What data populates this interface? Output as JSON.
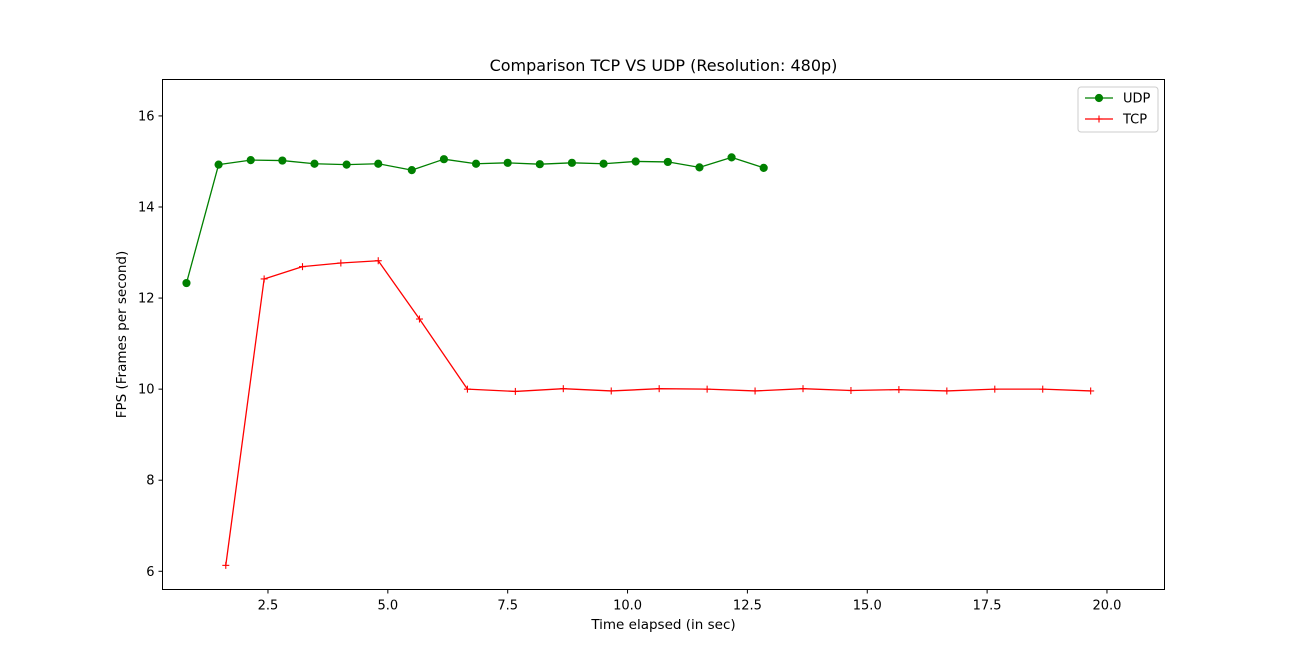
{
  "chart_data": {
    "type": "line",
    "title": "Comparison TCP VS UDP (Resolution: 480p)",
    "xlabel": "Time elapsed (in sec)",
    "ylabel": "FPS (Frames per second)",
    "xlim": [
      0.3,
      21.2
    ],
    "ylim": [
      5.6,
      16.8
    ],
    "xticks": [
      2.5,
      5.0,
      7.5,
      10.0,
      12.5,
      15.0,
      17.5,
      20.0
    ],
    "xtick_labels": [
      "2.5",
      "5.0",
      "7.5",
      "10.0",
      "12.5",
      "15.0",
      "17.5",
      "20.0"
    ],
    "yticks": [
      6,
      8,
      10,
      12,
      14,
      16
    ],
    "ytick_labels": [
      "6",
      "8",
      "10",
      "12",
      "14",
      "16"
    ],
    "grid": false,
    "legend_position": "top-right",
    "series": [
      {
        "name": "UDP",
        "color": "#008000",
        "marker": "circle",
        "x": [
          0.8,
          1.47,
          2.14,
          2.8,
          3.47,
          4.14,
          4.8,
          5.5,
          6.17,
          6.84,
          7.5,
          8.17,
          8.84,
          9.5,
          10.17,
          10.84,
          11.5,
          12.17,
          12.84
        ],
        "y": [
          12.33,
          14.93,
          15.03,
          15.02,
          14.95,
          14.93,
          14.95,
          14.81,
          15.05,
          14.95,
          14.97,
          14.94,
          14.97,
          14.95,
          15.0,
          14.99,
          14.87,
          15.09,
          14.86
        ]
      },
      {
        "name": "TCP",
        "color": "#ff0000",
        "marker": "plus",
        "x": [
          1.62,
          2.42,
          3.22,
          4.02,
          4.8,
          5.66,
          6.66,
          7.66,
          8.66,
          9.66,
          10.66,
          11.66,
          12.66,
          13.66,
          14.66,
          15.66,
          16.66,
          17.66,
          18.66,
          19.66
        ],
        "y": [
          6.13,
          12.42,
          12.69,
          12.77,
          12.82,
          11.54,
          10.0,
          9.95,
          10.01,
          9.96,
          10.01,
          10.0,
          9.96,
          10.01,
          9.97,
          9.99,
          9.96,
          10.0,
          10.0,
          9.96
        ]
      }
    ]
  }
}
